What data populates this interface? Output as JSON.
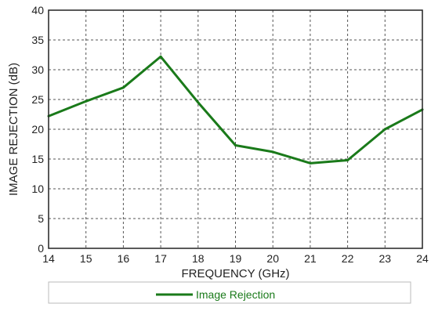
{
  "chart_data": {
    "type": "line",
    "title": "",
    "xlabel": "FREQUENCY (GHz)",
    "ylabel": "IMAGE REJECTION (dB)",
    "xlim": [
      14,
      24
    ],
    "ylim": [
      0,
      40
    ],
    "x_ticks": [
      "14",
      "15",
      "16",
      "17",
      "18",
      "19",
      "20",
      "21",
      "22",
      "23",
      "24"
    ],
    "y_ticks": [
      "0",
      "5",
      "10",
      "15",
      "20",
      "25",
      "30",
      "35",
      "40"
    ],
    "grid": true,
    "legend_position": "bottom",
    "series": [
      {
        "name": "Image Rejection",
        "color": "#1a7a1a",
        "x": [
          14,
          15,
          16,
          17,
          18,
          19,
          20,
          21,
          22,
          23,
          24
        ],
        "y": [
          22.2,
          24.7,
          27.0,
          32.2,
          24.5,
          17.3,
          16.2,
          14.3,
          14.8,
          20.0,
          23.3
        ]
      }
    ]
  }
}
